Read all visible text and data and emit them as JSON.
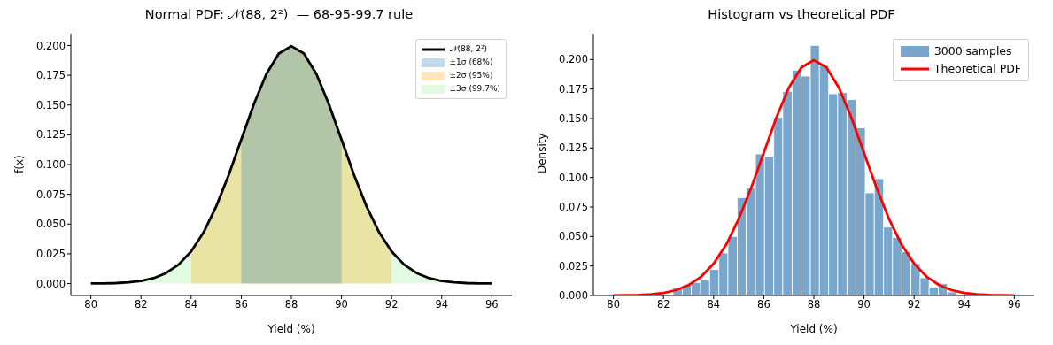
{
  "chart_data": [
    {
      "type": "line",
      "title": "Normal PDF: 𝒩(88, 2²)  — 68-95-99.7 rule",
      "xlabel": "Yield (%)",
      "ylabel": "f(x)",
      "legend": "top right",
      "xlim": [
        79.2,
        96.8
      ],
      "ylim": [
        -0.01,
        0.21
      ],
      "xticks": [
        80,
        82,
        84,
        86,
        88,
        90,
        92,
        94,
        96
      ],
      "yticks": [
        {
          "value": 0,
          "label": "0.000"
        },
        {
          "value": 0.025,
          "label": "0.025"
        },
        {
          "value": 0.05,
          "label": "0.050"
        },
        {
          "value": 0.075,
          "label": "0.075"
        },
        {
          "value": 0.1,
          "label": "0.100"
        },
        {
          "value": 0.125,
          "label": "0.125"
        },
        {
          "value": 0.15,
          "label": "0.150"
        },
        {
          "value": 0.175,
          "label": "0.175"
        },
        {
          "value": 0.2,
          "label": "0.200"
        }
      ],
      "series": [
        {
          "name": "𝒩(88, 2²)",
          "color": "#000000",
          "x": [
            80,
            80.5,
            81,
            81.5,
            82,
            82.5,
            83,
            83.5,
            84,
            84.5,
            85,
            85.5,
            86,
            86.5,
            87,
            87.5,
            88,
            88.5,
            89,
            89.5,
            90,
            90.5,
            91,
            91.5,
            92,
            92.5,
            93,
            93.5,
            94,
            94.5,
            95,
            95.5,
            96
          ],
          "values": [
            0.0001,
            0.0002,
            0.0004,
            0.001,
            0.0022,
            0.0045,
            0.0088,
            0.0159,
            0.027,
            0.0431,
            0.0648,
            0.0913,
            0.121,
            0.1506,
            0.176,
            0.1933,
            0.1995,
            0.1933,
            0.176,
            0.1506,
            0.121,
            0.0913,
            0.0648,
            0.0431,
            0.027,
            0.0159,
            0.0088,
            0.0045,
            0.0022,
            0.001,
            0.0004,
            0.0002,
            0.0001
          ]
        },
        {
          "type": "area",
          "name": "±1σ (68%)",
          "color": "#1f77b4",
          "x": [
            86,
            86.5,
            87,
            87.5,
            88,
            88.5,
            89,
            89.5,
            90
          ],
          "values": [
            0.121,
            0.1506,
            0.176,
            0.1933,
            0.1995,
            0.1933,
            0.176,
            0.1506,
            0.121
          ]
        },
        {
          "type": "area",
          "name": "±2σ (95%)",
          "color": "#ffa500",
          "x": [
            84,
            84.5,
            85,
            85.5,
            86,
            86.5,
            87,
            87.5,
            88,
            88.5,
            89,
            89.5,
            90,
            90.5,
            91,
            91.5,
            92
          ],
          "values": [
            0.027,
            0.0431,
            0.0648,
            0.0913,
            0.121,
            0.1506,
            0.176,
            0.1933,
            0.1995,
            0.1933,
            0.176,
            0.1506,
            0.121,
            0.0913,
            0.0648,
            0.0431,
            0.027
          ]
        },
        {
          "type": "area",
          "name": "±3σ (99.7%)",
          "color": "#90ee90",
          "x": [
            82,
            82.5,
            83,
            83.5,
            84,
            84.5,
            85,
            85.5,
            86,
            86.5,
            87,
            87.5,
            88,
            88.5,
            89,
            89.5,
            90,
            90.5,
            91,
            91.5,
            92,
            92.5,
            93,
            93.5,
            94
          ],
          "values": [
            0.0022,
            0.0045,
            0.0088,
            0.0159,
            0.027,
            0.0431,
            0.0648,
            0.0913,
            0.121,
            0.1506,
            0.176,
            0.1933,
            0.1995,
            0.1933,
            0.176,
            0.1506,
            0.121,
            0.0913,
            0.0648,
            0.0431,
            0.027,
            0.0159,
            0.0088,
            0.0045,
            0.0022
          ]
        }
      ]
    },
    {
      "type": "histogram",
      "title": "Histogram vs theoretical PDF",
      "xlabel": "Yield (%)",
      "ylabel": "Density",
      "legend": "top right",
      "xlim": [
        79.2,
        96.8
      ],
      "ylim": [
        0,
        0.222
      ],
      "xticks": [
        80,
        82,
        84,
        86,
        88,
        90,
        92,
        94,
        96
      ],
      "yticks": [
        {
          "value": 0,
          "label": "0.000"
        },
        {
          "value": 0.025,
          "label": "0.025"
        },
        {
          "value": 0.05,
          "label": "0.050"
        },
        {
          "value": 0.075,
          "label": "0.075"
        },
        {
          "value": 0.1,
          "label": "0.100"
        },
        {
          "value": 0.125,
          "label": "0.125"
        },
        {
          "value": 0.15,
          "label": "0.150"
        },
        {
          "value": 0.175,
          "label": "0.175"
        },
        {
          "value": 0.2,
          "label": "0.200"
        }
      ],
      "series": [
        {
          "name": "3000 samples",
          "color": "#7ba6cc",
          "bins": [
            82.38,
            82.75,
            83.11,
            83.48,
            83.84,
            84.21,
            84.57,
            84.94,
            85.3,
            85.67,
            86.03,
            86.4,
            86.76,
            87.13,
            87.49,
            87.86,
            88.22,
            88.59,
            88.95,
            89.32,
            89.68,
            90.05,
            90.41,
            90.78,
            91.14,
            91.51,
            91.87,
            92.24,
            92.6,
            92.97,
            93.33,
            93.7
          ],
          "values": [
            0.007,
            0.009,
            0.011,
            0.013,
            0.022,
            0.036,
            0.05,
            0.083,
            0.091,
            0.12,
            0.118,
            0.151,
            0.173,
            0.191,
            0.186,
            0.212,
            0.195,
            0.171,
            0.172,
            0.166,
            0.142,
            0.087,
            0.099,
            0.058,
            0.049,
            0.037,
            0.027,
            0.015,
            0.007,
            0.01,
            0.003
          ]
        },
        {
          "type": "line",
          "name": "Theoretical PDF",
          "color": "#ff0000",
          "x": [
            80,
            80.5,
            81,
            81.5,
            82,
            82.5,
            83,
            83.5,
            84,
            84.5,
            85,
            85.5,
            86,
            86.5,
            87,
            87.5,
            88,
            88.5,
            89,
            89.5,
            90,
            90.5,
            91,
            91.5,
            92,
            92.5,
            93,
            93.5,
            94,
            94.5,
            95,
            95.5,
            96
          ],
          "values": [
            0.0001,
            0.0002,
            0.0004,
            0.001,
            0.0022,
            0.0045,
            0.0088,
            0.0159,
            0.027,
            0.0431,
            0.0648,
            0.0913,
            0.121,
            0.1506,
            0.176,
            0.1933,
            0.1995,
            0.1933,
            0.176,
            0.1506,
            0.121,
            0.0913,
            0.0648,
            0.0431,
            0.027,
            0.0159,
            0.0088,
            0.0045,
            0.0022,
            0.001,
            0.0004,
            0.0002,
            0.0001
          ]
        }
      ]
    }
  ]
}
